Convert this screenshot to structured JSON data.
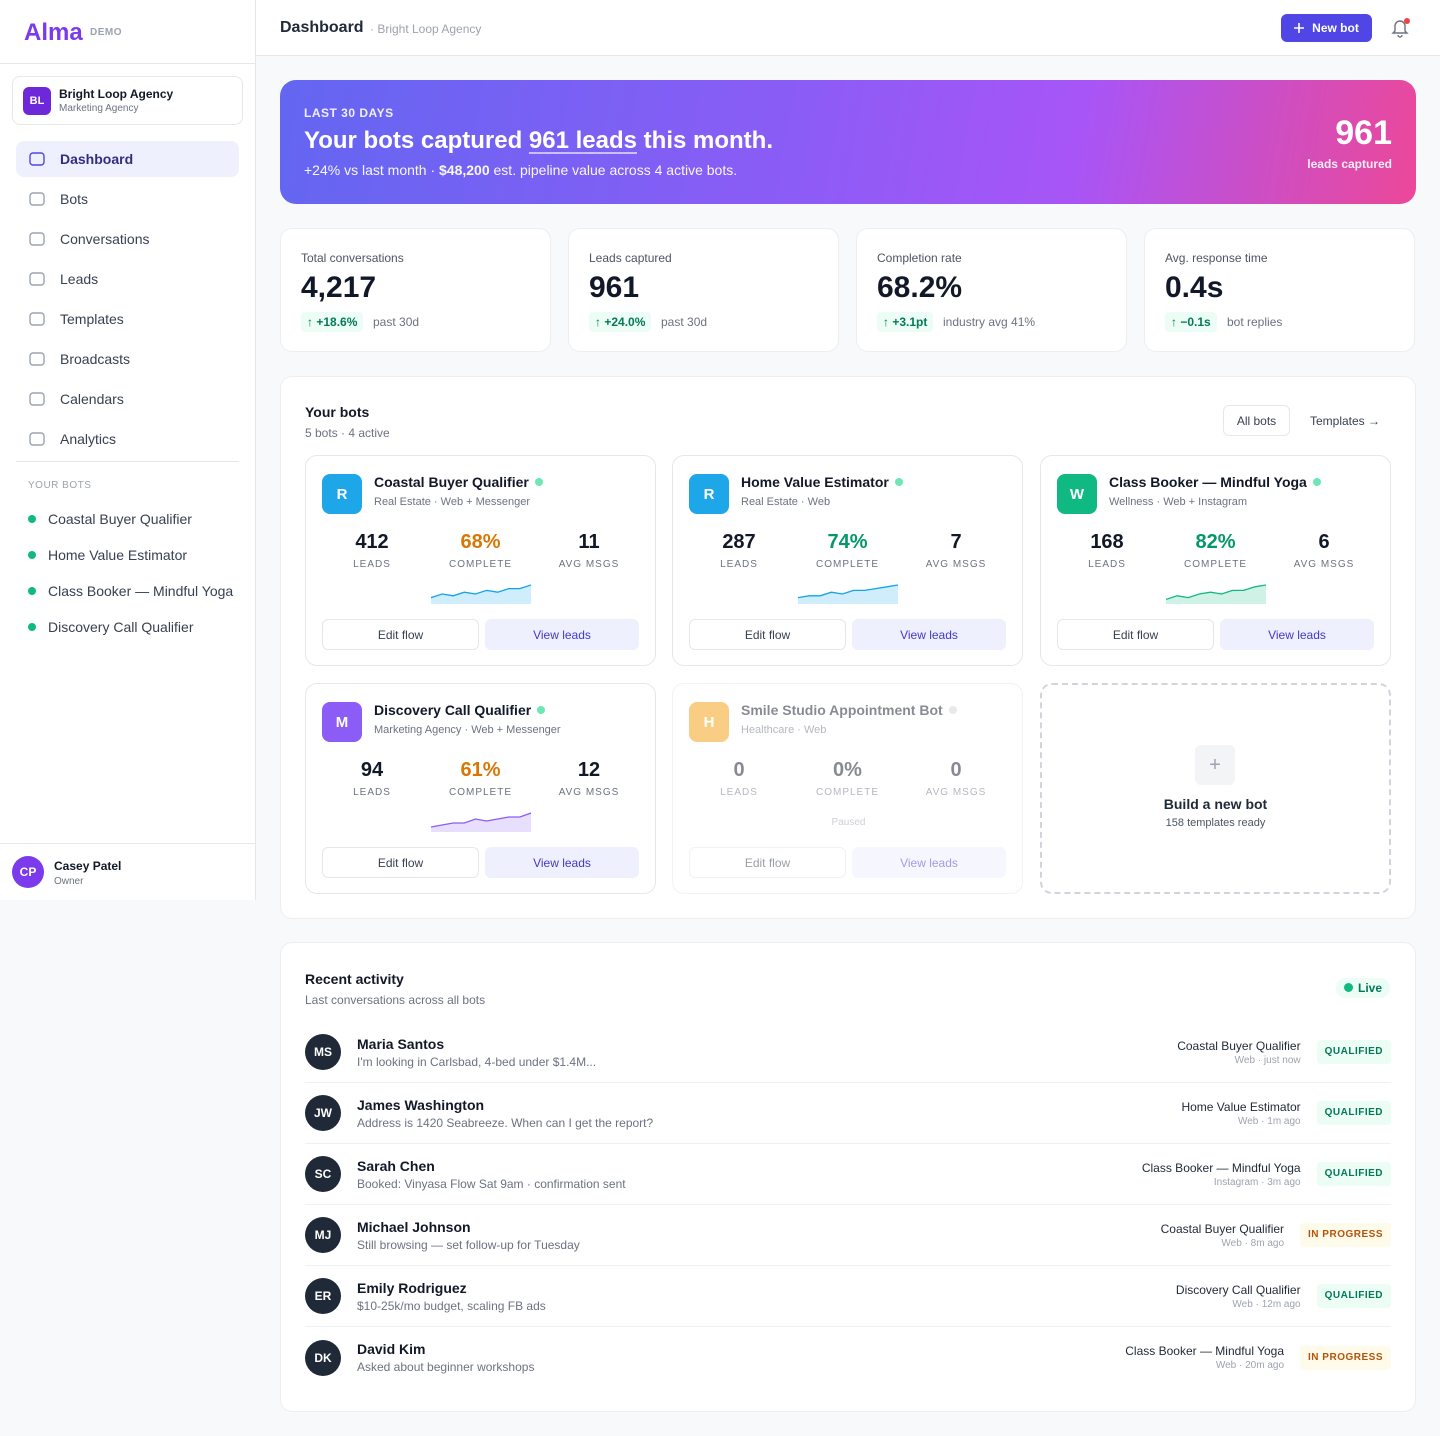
{
  "sidebar": {
    "logo": "Alma",
    "badge": "DEMO",
    "org": {
      "initials": "BL",
      "name": "Bright Loop Agency",
      "type": "Marketing Agency"
    },
    "nav": [
      "Dashboard",
      "Bots",
      "Conversations",
      "Leads",
      "Templates",
      "Broadcasts",
      "Calendars",
      "Analytics"
    ],
    "bots_heading": "YOUR BOTS",
    "bots": [
      "Coastal Buyer Qualifier",
      "Home Value Estimator",
      "Class Booker — Mindful Yoga",
      "Discovery Call Qualifier"
    ],
    "user": {
      "initials": "CP",
      "name": "Casey Patel",
      "role": "Owner"
    }
  },
  "header": {
    "title": "Dashboard",
    "context": "· Bright Loop Agency",
    "button": "New bot"
  },
  "hero": {
    "eyebrow": "LAST 30 DAYS",
    "headline_start": "Your bots captured ",
    "headline_highlight": "961 leads",
    "headline_end": " this month.",
    "sub_start": "+24% vs last month · ",
    "sub_value": "$48,200",
    "sub_end": " est. pipeline value across 4 active bots.",
    "big": "961",
    "big_label": "leads captured"
  },
  "stats": [
    {
      "label": "Total conversations",
      "value": "4,217",
      "delta": "↑ +18.6%",
      "note": "past 30d"
    },
    {
      "label": "Leads captured",
      "value": "961",
      "delta": "↑ +24.0%",
      "note": "past 30d"
    },
    {
      "label": "Completion rate",
      "value": "68.2%",
      "delta": "↑ +3.1pt",
      "note": "industry avg 41%"
    },
    {
      "label": "Avg. response time",
      "value": "0.4s",
      "delta": "↑ −0.1s",
      "note": "bot replies"
    }
  ],
  "bots_panel": {
    "title": "Your bots",
    "subtitle": "5 bots · 4 active",
    "filter": "All bots",
    "link": "Templates →",
    "bots": [
      {
        "initial": "R",
        "color": "#1ea7e8",
        "name": "Coastal Buyer Qualifier",
        "meta": "Real Estate · Web + Messenger",
        "active": true,
        "stats": [
          {
            "value": "412",
            "label": "LEADS"
          },
          {
            "value": "68%",
            "label": "COMPLETE",
            "color": "#d97706"
          },
          {
            "value": "11",
            "label": "AVG MSGS"
          }
        ],
        "spark": [
          3,
          5,
          4,
          6,
          5,
          7,
          6,
          8,
          8,
          10
        ],
        "spark_color": "#0ea5e9",
        "edit": "Edit flow",
        "view": "View leads"
      },
      {
        "initial": "R",
        "color": "#1ea7e8",
        "name": "Home Value Estimator",
        "meta": "Real Estate · Web",
        "active": true,
        "stats": [
          {
            "value": "287",
            "label": "LEADS"
          },
          {
            "value": "74%",
            "label": "COMPLETE",
            "color": "#059669"
          },
          {
            "value": "7",
            "label": "AVG MSGS"
          }
        ],
        "spark": [
          3,
          4,
          4,
          6,
          5,
          7,
          7,
          8,
          9,
          10
        ],
        "spark_color": "#0ea5e9",
        "edit": "Edit flow",
        "view": "View leads"
      },
      {
        "initial": "W",
        "color": "#10b981",
        "name": "Class Booker — Mindful Yoga",
        "meta": "Wellness · Web + Instagram",
        "active": true,
        "stats": [
          {
            "value": "168",
            "label": "LEADS"
          },
          {
            "value": "82%",
            "label": "COMPLETE",
            "color": "#059669"
          },
          {
            "value": "6",
            "label": "AVG MSGS"
          }
        ],
        "spark": [
          2,
          4,
          3,
          5,
          6,
          5,
          7,
          7,
          9,
          10
        ],
        "spark_color": "#10b981",
        "edit": "Edit flow",
        "view": "View leads"
      },
      {
        "initial": "M",
        "color": "#8b5cf6",
        "name": "Discovery Call Qualifier",
        "meta": "Marketing Agency · Web + Messenger",
        "active": true,
        "stats": [
          {
            "value": "94",
            "label": "LEADS"
          },
          {
            "value": "61%",
            "label": "COMPLETE",
            "color": "#d97706"
          },
          {
            "value": "12",
            "label": "AVG MSGS"
          }
        ],
        "spark": [
          2,
          3,
          4,
          4,
          6,
          5,
          6,
          7,
          7,
          9
        ],
        "spark_color": "#8b5cf6",
        "edit": "Edit flow",
        "view": "View leads"
      },
      {
        "initial": "H",
        "color": "#f59e0b",
        "name": "Smile Studio Appointment Bot",
        "meta": "Healthcare · Web",
        "active": false,
        "stats": [
          {
            "value": "0",
            "label": "LEADS"
          },
          {
            "value": "0%",
            "label": "COMPLETE"
          },
          {
            "value": "0",
            "label": "AVG MSGS"
          }
        ],
        "status": "Paused",
        "edit": "Edit flow",
        "view": "View leads"
      }
    ],
    "new_bot": {
      "icon": "+",
      "title": "Build a new bot",
      "subtitle": "158 templates ready"
    }
  },
  "activity": {
    "title": "Recent activity",
    "subtitle": "Last conversations across all bots",
    "live": "Live",
    "rows": [
      {
        "initials": "MS",
        "name": "Maria Santos",
        "message": "I'm looking in Carlsbad, 4-bed under $1.4M...",
        "bot": "Coastal Buyer Qualifier",
        "meta": "Web · just now",
        "status": "QUALIFIED",
        "status_color": "#047857",
        "status_bg": "#ecfdf5"
      },
      {
        "initials": "JW",
        "name": "James Washington",
        "message": "Address is 1420 Seabreeze. When can I get the report?",
        "bot": "Home Value Estimator",
        "meta": "Web · 1m ago",
        "status": "QUALIFIED",
        "status_color": "#047857",
        "status_bg": "#ecfdf5"
      },
      {
        "initials": "SC",
        "name": "Sarah Chen",
        "message": "Booked: Vinyasa Flow Sat 9am · confirmation sent",
        "bot": "Class Booker — Mindful Yoga",
        "meta": "Instagram · 3m ago",
        "status": "QUALIFIED",
        "status_color": "#047857",
        "status_bg": "#ecfdf5"
      },
      {
        "initials": "MJ",
        "name": "Michael Johnson",
        "message": "Still browsing — set follow-up for Tuesday",
        "bot": "Coastal Buyer Qualifier",
        "meta": "Web · 8m ago",
        "status": "IN PROGRESS",
        "status_color": "#b45309",
        "status_bg": "#fffbeb"
      },
      {
        "initials": "ER",
        "name": "Emily Rodriguez",
        "message": "$10-25k/mo budget, scaling FB ads",
        "bot": "Discovery Call Qualifier",
        "meta": "Web · 12m ago",
        "status": "QUALIFIED",
        "status_color": "#047857",
        "status_bg": "#ecfdf5"
      },
      {
        "initials": "DK",
        "name": "David Kim",
        "message": "Asked about beginner workshops",
        "bot": "Class Booker — Mindful Yoga",
        "meta": "Web · 20m ago",
        "status": "IN PROGRESS",
        "status_color": "#b45309",
        "status_bg": "#fffbeb"
      }
    ]
  }
}
